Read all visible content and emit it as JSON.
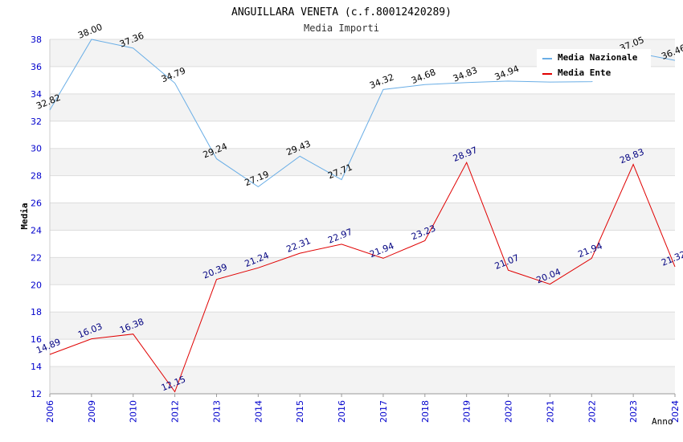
{
  "chart_data": {
    "type": "line",
    "title": "ANGUILLARA VENETA (c.f.80012420289)",
    "subtitle": "Media Importi",
    "xlabel": "Anno",
    "ylabel": "Media",
    "ylim": [
      12,
      38
    ],
    "yticks": [
      12,
      14,
      16,
      18,
      20,
      22,
      24,
      26,
      28,
      30,
      32,
      34,
      36,
      38
    ],
    "categories": [
      "2006",
      "2009",
      "2010",
      "2012",
      "2013",
      "2014",
      "2015",
      "2016",
      "2017",
      "2018",
      "2019",
      "2020",
      "2021",
      "2022",
      "2023",
      "2024"
    ],
    "legend_position": "top-right",
    "series": [
      {
        "name": "Media Nazionale",
        "color": "#6aaee6",
        "label_color": "#000000",
        "values": [
          32.82,
          38.0,
          37.36,
          34.79,
          29.24,
          27.19,
          29.43,
          27.71,
          34.32,
          34.68,
          34.83,
          34.94,
          34.87,
          34.9,
          37.05,
          36.46
        ],
        "labels": [
          "32.82",
          "38.00",
          "37.36",
          "34.79",
          "29.24",
          "27.19",
          "29.43",
          "27.71",
          "34.32",
          "34.68",
          "34.83",
          "34.94",
          "",
          "",
          "37.05",
          "36.46"
        ]
      },
      {
        "name": "Media Ente",
        "color": "#e00000",
        "label_color": "#000080",
        "values": [
          14.89,
          16.03,
          16.38,
          12.15,
          20.39,
          21.24,
          22.31,
          22.97,
          21.94,
          23.23,
          28.97,
          21.07,
          20.04,
          21.94,
          28.83,
          21.32
        ],
        "labels": [
          "14.89",
          "16.03",
          "16.38",
          "12.15",
          "20.39",
          "21.24",
          "22.31",
          "22.97",
          "21.94",
          "23.23",
          "28.97",
          "21.07",
          "20.04",
          "21.94",
          "28.83",
          "21.32"
        ]
      }
    ]
  }
}
